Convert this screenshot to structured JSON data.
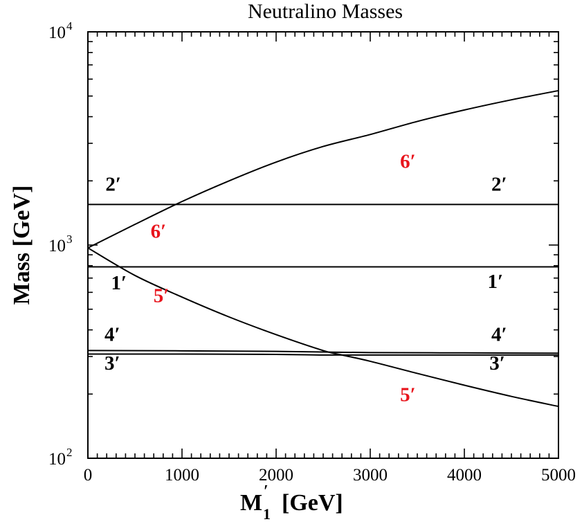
{
  "chart_data": {
    "type": "line",
    "title": "Neutralino Masses",
    "xlabel": "M",
    "xlabel_sup": "′",
    "xlabel_sub": "1",
    "xlabel_unit": "[GeV]",
    "ylabel": "Mass [GeV]",
    "xlim": [
      0,
      5000
    ],
    "ylim": [
      100,
      10000
    ],
    "yscale": "log",
    "grid": false,
    "x_ticks": [
      0,
      1000,
      2000,
      3000,
      4000,
      5000
    ],
    "y_ticks": [
      {
        "base": "10",
        "exp": "2",
        "value": 100
      },
      {
        "base": "10",
        "exp": "3",
        "value": 1000
      },
      {
        "base": "10",
        "exp": "4",
        "value": 10000
      }
    ],
    "series": [
      {
        "x": [
          0,
          5000
        ],
        "y": [
          1550,
          1550
        ]
      },
      {
        "x": [
          0,
          5000
        ],
        "y": [
          790,
          790
        ]
      },
      {
        "x": [
          0,
          1000,
          2000,
          2500,
          3000,
          4000,
          5000
        ],
        "y": [
          320,
          319,
          317,
          315,
          313,
          312,
          311
        ]
      },
      {
        "x": [
          0,
          1000,
          2000,
          2500,
          3000,
          4000,
          5000
        ],
        "y": [
          308,
          308,
          307,
          305,
          305,
          305,
          305
        ]
      },
      {
        "x": [
          0,
          500,
          1000,
          1500,
          2000,
          2500,
          2700,
          3000,
          3500,
          4000,
          4500,
          5000
        ],
        "y": [
          970,
          720,
          570,
          460,
          380,
          320,
          305,
          285,
          250,
          220,
          195,
          175
        ]
      },
      {
        "x": [
          0,
          500,
          1000,
          1500,
          2000,
          2500,
          3000,
          3500,
          4000,
          4500,
          5000
        ],
        "y": [
          970,
          1250,
          1600,
          2000,
          2450,
          2900,
          3300,
          3800,
          4300,
          4800,
          5300
        ]
      }
    ],
    "annotations": [
      {
        "text": "6′",
        "x": 3400,
        "y": 2300,
        "color": "#e8141c"
      },
      {
        "text": "2′",
        "x": 270,
        "y": 1800,
        "color": "#000000"
      },
      {
        "text": "2′",
        "x": 4370,
        "y": 1800,
        "color": "#000000"
      },
      {
        "text": "6′",
        "x": 750,
        "y": 1080,
        "color": "#e8141c"
      },
      {
        "text": "1′",
        "x": 330,
        "y": 620,
        "color": "#000000"
      },
      {
        "text": "1′",
        "x": 4330,
        "y": 630,
        "color": "#000000"
      },
      {
        "text": "5′",
        "x": 780,
        "y": 540,
        "color": "#e8141c"
      },
      {
        "text": "4′",
        "x": 260,
        "y": 355,
        "color": "#000000"
      },
      {
        "text": "4′",
        "x": 4370,
        "y": 355,
        "color": "#000000"
      },
      {
        "text": "3′",
        "x": 260,
        "y": 260,
        "color": "#000000"
      },
      {
        "text": "3′",
        "x": 4350,
        "y": 260,
        "color": "#000000"
      },
      {
        "text": "5′",
        "x": 3400,
        "y": 185,
        "color": "#e8141c"
      }
    ]
  }
}
